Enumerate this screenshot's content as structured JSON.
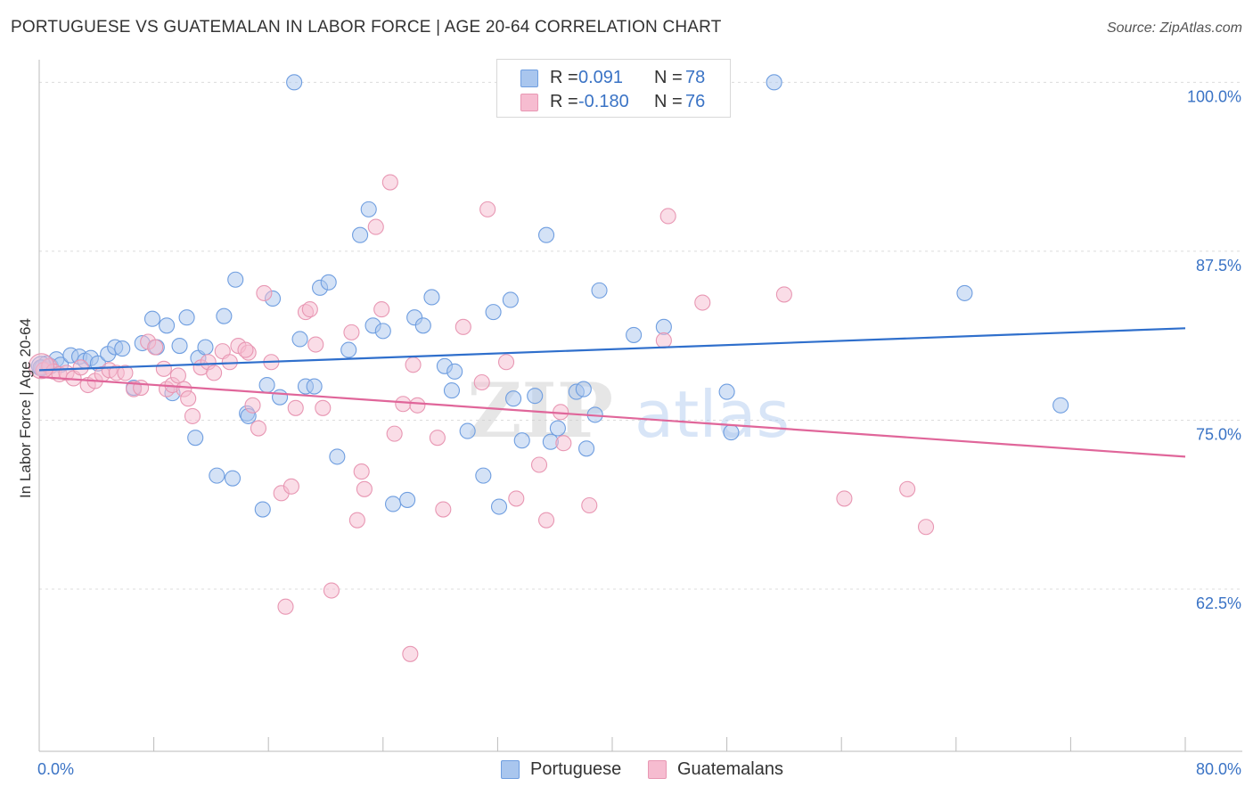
{
  "title": "PORTUGUESE VS GUATEMALAN IN LABOR FORCE | AGE 20-64 CORRELATION CHART",
  "source": "Source: ZipAtlas.com",
  "watermark": {
    "zip": "ZIP",
    "atlas": "atlas"
  },
  "legend_top": [
    {
      "label": "R =",
      "r": "0.091",
      "n_label": "N =",
      "n": "78",
      "color": "#a9c6ee",
      "border": "#6f9ee0"
    },
    {
      "label": "R =",
      "r": "-0.180",
      "n_label": "N =",
      "n": "76",
      "color": "#f6bcd0",
      "border": "#e897b3"
    }
  ],
  "legend_bottom": [
    {
      "label": "Portuguese",
      "color": "#a9c6ee",
      "border": "#6f9ee0"
    },
    {
      "label": "Guatemalans",
      "color": "#f6bcd0",
      "border": "#e897b3"
    }
  ],
  "chart_data": {
    "type": "scatter",
    "title": "PORTUGUESE VS GUATEMALAN IN LABOR FORCE | AGE 20-64 CORRELATION CHART",
    "xlabel": "",
    "ylabel": "In Labor Force | Age 20-64",
    "xlim": [
      0,
      80
    ],
    "ylim": [
      50.5,
      102
    ],
    "x_tick_labels": [
      {
        "value": 0,
        "label": "0.0%"
      },
      {
        "value": 80,
        "label": "80.0%"
      }
    ],
    "x_minor_ticks": [
      0,
      8,
      16,
      24,
      32,
      40,
      48,
      56,
      64,
      72,
      80
    ],
    "y_ticks": [
      {
        "value": 100,
        "label": "100.0%"
      },
      {
        "value": 87.5,
        "label": "87.5%"
      },
      {
        "value": 75,
        "label": "75.0%"
      },
      {
        "value": 62.5,
        "label": "62.5%"
      }
    ],
    "grid": true,
    "legend_placement": "top-center",
    "series": [
      {
        "name": "Portuguese",
        "color": "#6f9ee0",
        "fill": "#a9c6ee",
        "trend_color": "#2f6fcc",
        "trend": {
          "x0": 0,
          "y0": 78.7,
          "x1": 80,
          "y1": 81.8
        },
        "points": [
          [
            0.2,
            78.9
          ],
          [
            0.5,
            79.2
          ],
          [
            0.8,
            79.0
          ],
          [
            1.2,
            79.5
          ],
          [
            1.5,
            79.1
          ],
          [
            2.2,
            79.8
          ],
          [
            2.8,
            79.7
          ],
          [
            3.2,
            79.4
          ],
          [
            3.6,
            79.6
          ],
          [
            4.1,
            79.2
          ],
          [
            4.8,
            79.9
          ],
          [
            5.3,
            80.4
          ],
          [
            5.8,
            80.3
          ],
          [
            6.6,
            77.4
          ],
          [
            7.2,
            80.7
          ],
          [
            7.9,
            82.5
          ],
          [
            8.2,
            80.4
          ],
          [
            8.9,
            82.0
          ],
          [
            9.3,
            77.0
          ],
          [
            9.8,
            80.5
          ],
          [
            10.3,
            82.6
          ],
          [
            10.9,
            73.7
          ],
          [
            11.1,
            79.6
          ],
          [
            11.6,
            80.4
          ],
          [
            12.4,
            70.9
          ],
          [
            12.9,
            82.7
          ],
          [
            13.5,
            70.7
          ],
          [
            13.7,
            85.4
          ],
          [
            14.5,
            75.5
          ],
          [
            14.6,
            75.3
          ],
          [
            15.6,
            68.4
          ],
          [
            15.9,
            77.6
          ],
          [
            16.3,
            84.0
          ],
          [
            16.8,
            76.7
          ],
          [
            17.8,
            100.0
          ],
          [
            18.2,
            81.0
          ],
          [
            18.6,
            77.5
          ],
          [
            19.2,
            77.5
          ],
          [
            19.6,
            84.8
          ],
          [
            20.2,
            85.2
          ],
          [
            20.8,
            72.3
          ],
          [
            21.6,
            80.2
          ],
          [
            22.4,
            88.7
          ],
          [
            23.0,
            90.6
          ],
          [
            23.3,
            82.0
          ],
          [
            24.0,
            81.6
          ],
          [
            24.7,
            68.8
          ],
          [
            25.7,
            69.1
          ],
          [
            26.2,
            82.6
          ],
          [
            26.8,
            82.0
          ],
          [
            27.4,
            84.1
          ],
          [
            28.3,
            79.0
          ],
          [
            28.8,
            77.2
          ],
          [
            29.0,
            78.6
          ],
          [
            29.9,
            74.2
          ],
          [
            31.0,
            70.9
          ],
          [
            31.7,
            83.0
          ],
          [
            32.1,
            68.6
          ],
          [
            32.9,
            83.9
          ],
          [
            33.1,
            76.6
          ],
          [
            33.7,
            73.5
          ],
          [
            34.6,
            76.8
          ],
          [
            35.4,
            88.7
          ],
          [
            35.7,
            73.4
          ],
          [
            36.2,
            74.4
          ],
          [
            37.5,
            77.1
          ],
          [
            38.0,
            77.3
          ],
          [
            38.2,
            72.9
          ],
          [
            38.8,
            75.4
          ],
          [
            39.1,
            84.6
          ],
          [
            41.5,
            81.3
          ],
          [
            43.6,
            81.9
          ],
          [
            48.0,
            77.1
          ],
          [
            48.3,
            74.1
          ],
          [
            51.3,
            100.0
          ],
          [
            64.6,
            84.4
          ],
          [
            71.3,
            76.1
          ],
          [
            0.1,
            78.9
          ]
        ]
      },
      {
        "name": "Guatemalans",
        "color": "#e897b3",
        "fill": "#f6bcd0",
        "trend_color": "#e0669a",
        "trend": {
          "x0": 0,
          "y0": 78.2,
          "x1": 80,
          "y1": 72.3
        },
        "points": [
          [
            0.3,
            78.7
          ],
          [
            0.7,
            79.0
          ],
          [
            1.0,
            78.6
          ],
          [
            1.4,
            78.4
          ],
          [
            1.9,
            78.5
          ],
          [
            2.4,
            78.1
          ],
          [
            2.9,
            78.9
          ],
          [
            3.4,
            77.6
          ],
          [
            3.9,
            77.9
          ],
          [
            4.4,
            78.4
          ],
          [
            4.9,
            78.7
          ],
          [
            5.4,
            78.5
          ],
          [
            6.0,
            78.5
          ],
          [
            6.6,
            77.3
          ],
          [
            7.1,
            77.4
          ],
          [
            7.6,
            80.8
          ],
          [
            8.1,
            80.4
          ],
          [
            8.7,
            78.8
          ],
          [
            8.9,
            77.3
          ],
          [
            9.3,
            77.6
          ],
          [
            9.7,
            78.3
          ],
          [
            10.1,
            77.3
          ],
          [
            10.4,
            76.6
          ],
          [
            10.7,
            75.3
          ],
          [
            11.3,
            78.9
          ],
          [
            11.8,
            79.3
          ],
          [
            12.2,
            78.5
          ],
          [
            12.8,
            80.1
          ],
          [
            13.3,
            79.3
          ],
          [
            13.9,
            80.5
          ],
          [
            14.6,
            80.0
          ],
          [
            14.9,
            76.1
          ],
          [
            15.3,
            74.4
          ],
          [
            15.7,
            84.4
          ],
          [
            16.2,
            79.3
          ],
          [
            16.9,
            69.6
          ],
          [
            17.2,
            61.2
          ],
          [
            17.6,
            70.1
          ],
          [
            17.9,
            75.9
          ],
          [
            18.6,
            83.0
          ],
          [
            18.9,
            83.2
          ],
          [
            19.3,
            80.6
          ],
          [
            19.8,
            75.9
          ],
          [
            20.4,
            62.4
          ],
          [
            21.8,
            81.5
          ],
          [
            22.2,
            67.6
          ],
          [
            22.5,
            71.2
          ],
          [
            22.7,
            69.9
          ],
          [
            23.5,
            89.3
          ],
          [
            23.9,
            83.2
          ],
          [
            24.5,
            92.6
          ],
          [
            24.8,
            74.0
          ],
          [
            25.4,
            76.2
          ],
          [
            25.9,
            57.7
          ],
          [
            26.1,
            79.1
          ],
          [
            26.4,
            76.1
          ],
          [
            27.8,
            73.7
          ],
          [
            28.2,
            68.4
          ],
          [
            29.6,
            81.9
          ],
          [
            30.9,
            77.8
          ],
          [
            31.3,
            90.6
          ],
          [
            32.6,
            79.3
          ],
          [
            33.3,
            69.2
          ],
          [
            34.9,
            71.7
          ],
          [
            35.4,
            67.6
          ],
          [
            36.4,
            75.6
          ],
          [
            36.6,
            73.3
          ],
          [
            38.4,
            68.7
          ],
          [
            43.6,
            80.9
          ],
          [
            43.9,
            90.1
          ],
          [
            46.3,
            83.7
          ],
          [
            52.0,
            84.3
          ],
          [
            56.2,
            69.2
          ],
          [
            60.6,
            69.9
          ],
          [
            61.9,
            67.1
          ],
          [
            14.4,
            80.2
          ]
        ]
      }
    ]
  }
}
